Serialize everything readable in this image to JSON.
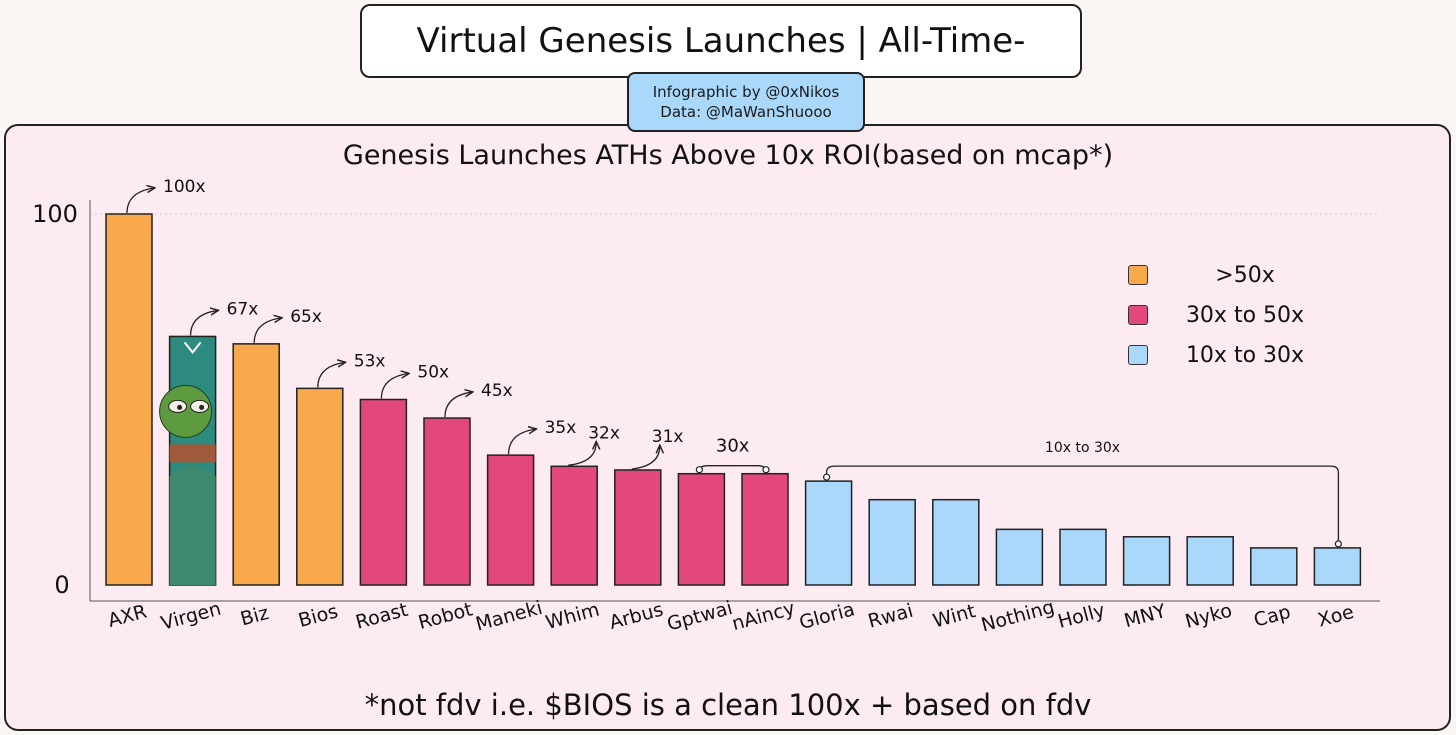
{
  "header": {
    "title": "Virtual Genesis Launches | All-Time-",
    "credit_line1": "Infographic by @0xNikos",
    "credit_line2": "Data: @MaWanShuooo"
  },
  "footnote": "*not fdv i.e. $BIOS is a clean 100x + based on fdv",
  "legend": [
    {
      "label": ">50x",
      "color": "#f9a94b"
    },
    {
      "label": "30x to 50x",
      "color": "#e3487a"
    },
    {
      "label": "10x to 30x",
      "color": "#a9d8fb"
    }
  ],
  "colors": {
    "bar_stroke": "#222222",
    "avatar_bg": "#2d8a7e",
    "avatar_frog": "#5e9a3f"
  },
  "icons": {
    "virgen_bar": "pepe-frog-avatar-icon"
  },
  "chart_data": {
    "type": "bar",
    "title": "Genesis Launches ATHs Above 10x ROI(based on mcap*)",
    "xlabel": "",
    "ylabel": "",
    "ylim": [
      0,
      100
    ],
    "yticks": [
      "0",
      "100"
    ],
    "grid": false,
    "legend_position": "top-right",
    "categories": [
      "AXR",
      "Virgen",
      "Biz",
      "Bios",
      "Roast",
      "Robot",
      "Maneki",
      "Whim",
      "Arbus",
      "Gptwai",
      "nAincy",
      "Gloria",
      "Rwai",
      "Wint",
      "Nothing",
      "Holly",
      "MNY",
      "Nyko",
      "Cap",
      "Xoe"
    ],
    "values": [
      100,
      67,
      65,
      53,
      50,
      45,
      35,
      32,
      31,
      30,
      30,
      28,
      23,
      23,
      15,
      15,
      13,
      13,
      10,
      10
    ],
    "tiers": [
      0,
      0,
      0,
      0,
      1,
      1,
      1,
      1,
      1,
      1,
      1,
      2,
      2,
      2,
      2,
      2,
      2,
      2,
      2,
      2
    ],
    "annotations": [
      {
        "index": 0,
        "label": "100x"
      },
      {
        "index": 1,
        "label": "67x"
      },
      {
        "index": 2,
        "label": "65x"
      },
      {
        "index": 3,
        "label": "53x"
      },
      {
        "index": 4,
        "label": "50x"
      },
      {
        "index": 5,
        "label": "45x"
      },
      {
        "index": 6,
        "label": "35x"
      },
      {
        "index": 7,
        "label": "32x"
      },
      {
        "index": 8,
        "label": "31x"
      }
    ],
    "brackets": [
      {
        "from": 9,
        "to": 10,
        "label": "30x"
      },
      {
        "from": 11,
        "to": 19,
        "label": "10x to 30x"
      }
    ]
  }
}
